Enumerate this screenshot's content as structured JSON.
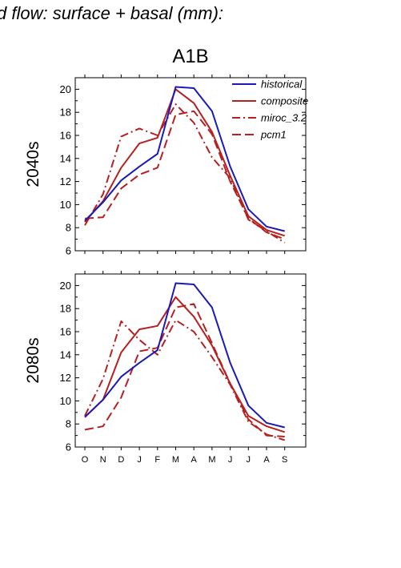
{
  "figure_title": "d flow: surface + basal (mm):",
  "scenario": "A1B",
  "colors": {
    "historical": "#1a1ab8",
    "model": "#b52020",
    "axis": "#000000"
  },
  "chart_data": [
    {
      "type": "line",
      "panel_label": "2040s",
      "categories": [
        "O",
        "N",
        "D",
        "J",
        "F",
        "M",
        "A",
        "M",
        "J",
        "J",
        "A",
        "S"
      ],
      "show_category_labels": false,
      "ylim": [
        6,
        21
      ],
      "yticks": [
        6,
        8,
        10,
        12,
        14,
        16,
        18,
        20
      ],
      "legend": {
        "placement": "top-right"
      },
      "series": [
        {
          "name": "historical",
          "style": "solid",
          "color": "#1a1ab8",
          "values": [
            8.6,
            10.2,
            12.1,
            13.3,
            14.4,
            20.2,
            20.1,
            18.1,
            13.3,
            9.6,
            8.1,
            7.7
          ]
        },
        {
          "name": "composite",
          "style": "solid",
          "color": "#b52020",
          "values": [
            8.5,
            10.3,
            13.2,
            15.3,
            15.8,
            20.0,
            18.8,
            16.3,
            12.5,
            9.0,
            7.8,
            7.3
          ]
        },
        {
          "name": "miroc_3.2",
          "style": "dashdot",
          "color": "#b52020",
          "values": [
            8.2,
            10.9,
            15.9,
            16.6,
            16.0,
            18.7,
            17.1,
            14.1,
            12.3,
            8.7,
            7.7,
            6.7
          ]
        },
        {
          "name": "pcm1",
          "style": "dash",
          "color": "#b52020",
          "values": [
            8.8,
            8.9,
            11.4,
            12.6,
            13.2,
            17.8,
            18.1,
            16.1,
            12.0,
            8.8,
            7.6,
            7.0
          ]
        }
      ]
    },
    {
      "type": "line",
      "panel_label": "2080s",
      "categories": [
        "O",
        "N",
        "D",
        "J",
        "F",
        "M",
        "A",
        "M",
        "J",
        "J",
        "A",
        "S"
      ],
      "show_category_labels": true,
      "ylim": [
        6,
        21
      ],
      "yticks": [
        6,
        8,
        10,
        12,
        14,
        16,
        18,
        20
      ],
      "series": [
        {
          "name": "historical",
          "style": "solid",
          "color": "#1a1ab8",
          "values": [
            8.6,
            10.1,
            12.1,
            13.3,
            14.4,
            20.2,
            20.1,
            18.1,
            13.3,
            9.6,
            8.1,
            7.7
          ]
        },
        {
          "name": "composite",
          "style": "solid",
          "color": "#b52020",
          "values": [
            8.6,
            10.1,
            14.2,
            16.2,
            16.5,
            19.0,
            17.3,
            14.8,
            11.5,
            8.7,
            7.8,
            7.3
          ]
        },
        {
          "name": "miroc_3.2",
          "style": "dashdot",
          "color": "#b52020",
          "values": [
            8.7,
            11.9,
            16.9,
            15.3,
            14.0,
            17.0,
            16.0,
            13.8,
            11.4,
            8.2,
            7.1,
            6.6
          ]
        },
        {
          "name": "pcm1",
          "style": "dash",
          "color": "#b52020",
          "values": [
            7.5,
            7.8,
            10.3,
            14.3,
            14.6,
            18.1,
            18.4,
            15.0,
            11.5,
            8.4,
            7.0,
            6.9
          ]
        }
      ]
    }
  ]
}
